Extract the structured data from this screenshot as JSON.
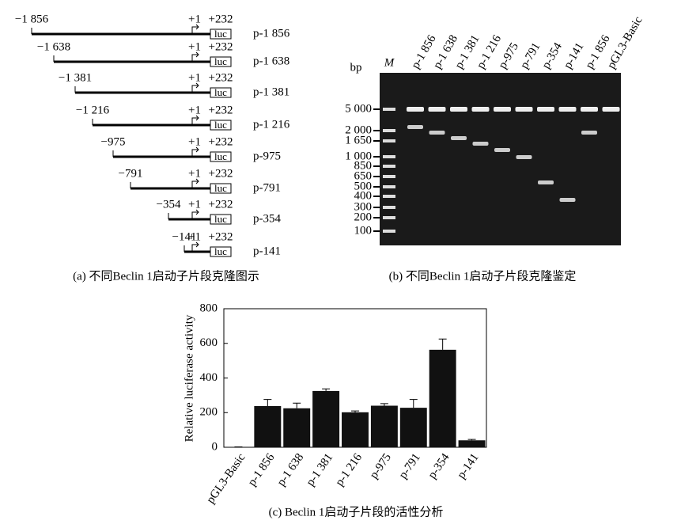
{
  "construct_panel": {
    "caption": "(a) 不同Beclin 1启动子片段克隆图示",
    "constructs": [
      {
        "start": "−1 856",
        "tss": "+1",
        "end": "+232",
        "reporter": "luc",
        "name": "p-1 856"
      },
      {
        "start": "−1 638",
        "tss": "+1",
        "end": "+232",
        "reporter": "luc",
        "name": "p-1 638"
      },
      {
        "start": "−1 381",
        "tss": "+1",
        "end": "+232",
        "reporter": "luc",
        "name": "p-1 381"
      },
      {
        "start": "−1 216",
        "tss": "+1",
        "end": "+232",
        "reporter": "luc",
        "name": "p-1 216"
      },
      {
        "start": "−975",
        "tss": "+1",
        "end": "+232",
        "reporter": "luc",
        "name": "p-975"
      },
      {
        "start": "−791",
        "tss": "+1",
        "end": "+232",
        "reporter": "luc",
        "name": "p-791"
      },
      {
        "start": "−354",
        "tss": "+1",
        "end": "+232",
        "reporter": "luc",
        "name": "p-354"
      },
      {
        "start": "−141",
        "tss": "+1",
        "end": "+232",
        "reporter": "luc",
        "name": "p-141"
      }
    ]
  },
  "gel_panel": {
    "caption": "(b) 不同Beclin 1启动子片段克隆鉴定",
    "unit": "bp",
    "marker_lane": "M",
    "lanes": [
      "p-1 856",
      "p-1 638",
      "p-1 381",
      "p-1 216",
      "p-975",
      "p-791",
      "p-354",
      "p-141",
      "p-1 856",
      "pGL3-Basic"
    ],
    "markers": [
      "5 000",
      "2 000",
      "1 650",
      "1 000",
      "850",
      "650",
      "500",
      "400",
      "300",
      "200",
      "100"
    ]
  },
  "chart_data": {
    "type": "bar",
    "caption": "(c) Beclin 1启动子片段的活性分析",
    "ylabel": "Relative luciferase activity",
    "categories": [
      "pGL3-Basic",
      "p-1 856",
      "p-1 638",
      "p-1 381",
      "p-1 216",
      "p-975",
      "p-791",
      "p-354",
      "p-141"
    ],
    "values": [
      2,
      238,
      225,
      325,
      202,
      240,
      228,
      563,
      40
    ],
    "errors": [
      0,
      38,
      30,
      12,
      8,
      12,
      48,
      62,
      5
    ],
    "color": "#111111",
    "ylim": [
      0,
      800
    ],
    "yticks": [
      0,
      200,
      400,
      600,
      800
    ]
  }
}
